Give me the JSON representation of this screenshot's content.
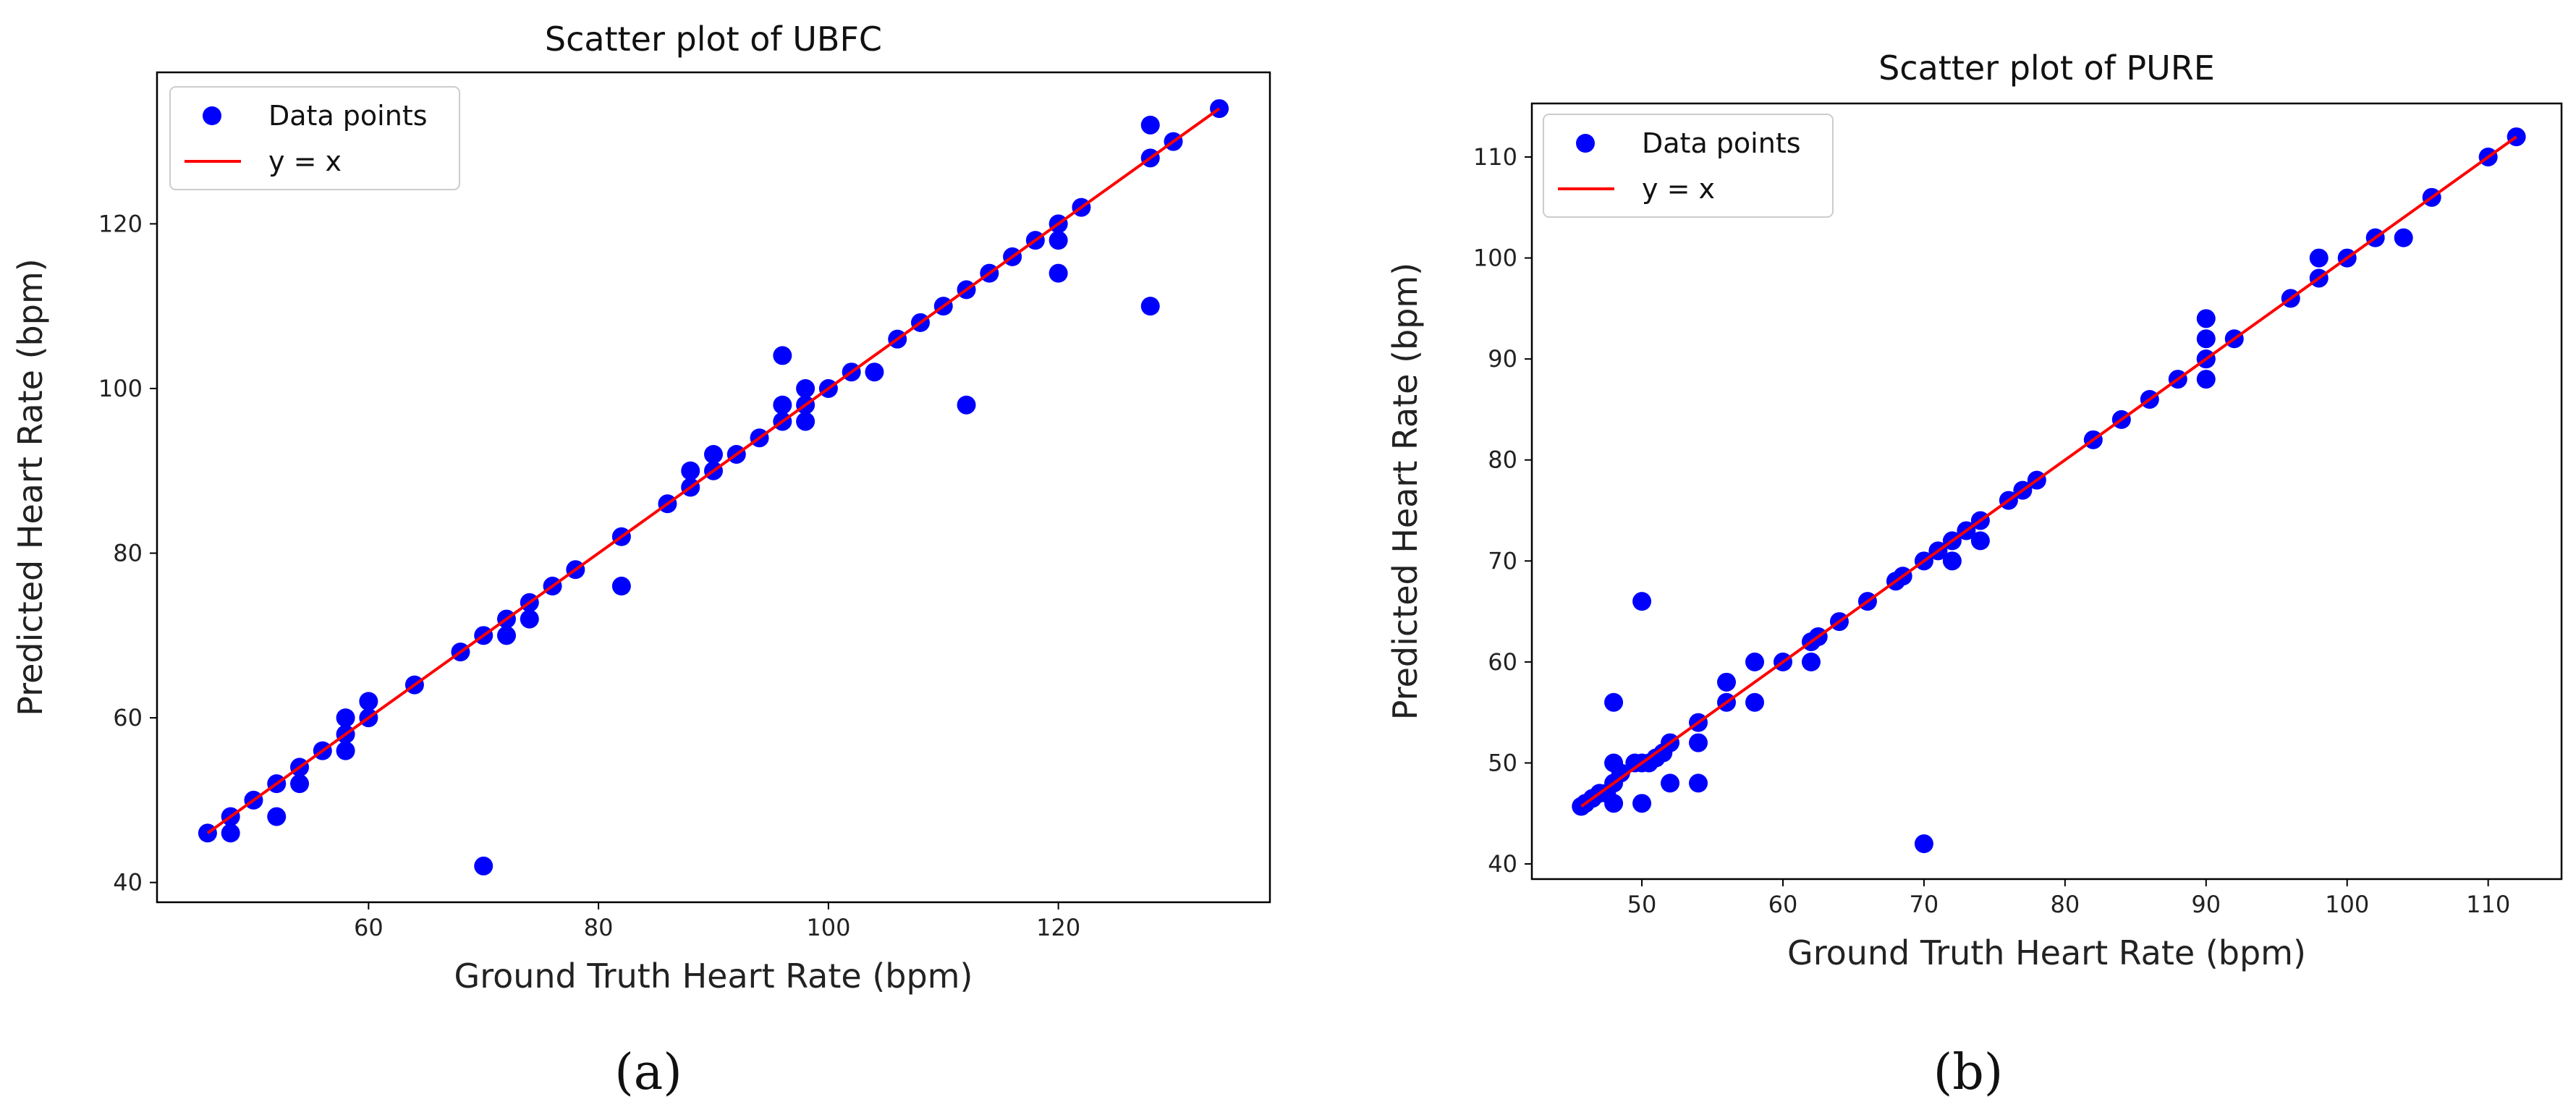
{
  "chart_data": [
    {
      "type": "scatter",
      "title": "Scatter plot of UBFC",
      "xlabel": "Ground Truth Heart Rate (bpm)",
      "ylabel": "Predicted Heart Rate (bpm)",
      "xlim": [
        41.6,
        138.4
      ],
      "ylim": [
        37.6,
        138.4
      ],
      "xticks": [
        60,
        80,
        100,
        120
      ],
      "yticks": [
        40,
        60,
        80,
        100,
        120
      ],
      "caption": "(a)",
      "colors": {
        "points": "#0000ff",
        "line": "#ff0000"
      },
      "legend": {
        "position": "upper-left",
        "entries": [
          "Data points",
          "y = x"
        ]
      },
      "series": [
        {
          "name": "Data points",
          "kind": "scatter",
          "x": [
            46,
            48,
            48,
            50,
            52,
            52,
            54,
            54,
            56,
            58,
            58,
            58,
            60,
            60,
            64,
            68,
            70,
            70,
            72,
            72,
            74,
            74,
            76,
            78,
            82,
            82,
            86,
            88,
            88,
            90,
            90,
            92,
            94,
            96,
            96,
            96,
            98,
            98,
            98,
            100,
            102,
            104,
            106,
            108,
            110,
            112,
            112,
            114,
            116,
            118,
            120,
            120,
            120,
            122,
            128,
            128,
            128,
            130,
            134
          ],
          "y": [
            46,
            46,
            48,
            50,
            48,
            52,
            52,
            54,
            56,
            56,
            58,
            60,
            60,
            62,
            64,
            68,
            42,
            70,
            70,
            72,
            72,
            74,
            76,
            78,
            76,
            82,
            86,
            88,
            90,
            90,
            92,
            92,
            94,
            96,
            98,
            104,
            96,
            98,
            100,
            100,
            102,
            102,
            106,
            108,
            110,
            98,
            112,
            114,
            116,
            118,
            114,
            118,
            120,
            122,
            110,
            128,
            132,
            130,
            134
          ]
        },
        {
          "name": "y = x",
          "kind": "line",
          "x": [
            46,
            134
          ],
          "y": [
            46,
            134
          ]
        }
      ]
    },
    {
      "type": "scatter",
      "title": "Scatter plot of PURE",
      "xlabel": "Ground Truth Heart Rate (bpm)",
      "ylabel": "Predicted Heart Rate (bpm)",
      "xlim": [
        42.2,
        115.2
      ],
      "ylim": [
        38.5,
        115.3
      ],
      "xticks": [
        50,
        60,
        70,
        80,
        90,
        100,
        110
      ],
      "yticks": [
        40,
        50,
        60,
        70,
        80,
        90,
        100,
        110
      ],
      "caption": "(b)",
      "colors": {
        "points": "#0000ff",
        "line": "#ff0000"
      },
      "legend": {
        "position": "upper-left",
        "entries": [
          "Data points",
          "y = x"
        ]
      },
      "series": [
        {
          "name": "Data points",
          "kind": "scatter",
          "x": [
            45.7,
            46,
            46.5,
            47,
            47.5,
            48,
            48,
            48,
            48,
            48.5,
            49.5,
            50,
            50,
            50,
            50.5,
            51,
            51.5,
            52,
            52,
            54,
            54,
            54,
            56,
            56,
            58,
            58,
            60,
            62,
            62,
            62.5,
            64,
            66,
            68,
            68.5,
            70,
            70,
            71,
            72,
            72,
            73,
            74,
            74,
            76,
            77,
            78,
            82,
            84,
            86,
            88,
            90,
            90,
            90,
            90,
            90,
            92,
            96,
            98,
            98,
            100,
            102,
            104,
            106,
            110,
            112
          ],
          "y": [
            45.7,
            46,
            46.5,
            47,
            47,
            46,
            48,
            50,
            56,
            49,
            50,
            46,
            50,
            66,
            50,
            50.5,
            51,
            48,
            52,
            48,
            52,
            54,
            56,
            58,
            56,
            60,
            60,
            60,
            62,
            62.5,
            64,
            66,
            68,
            68.5,
            42,
            70,
            71,
            70,
            72,
            73,
            72,
            74,
            76,
            77,
            78,
            82,
            84,
            86,
            88,
            88,
            90,
            92,
            94,
            90,
            92,
            96,
            98,
            100,
            100,
            102,
            102,
            106,
            110,
            112
          ]
        },
        {
          "name": "y = x",
          "kind": "line",
          "x": [
            45.7,
            112
          ],
          "y": [
            45.7,
            112
          ]
        }
      ]
    }
  ]
}
